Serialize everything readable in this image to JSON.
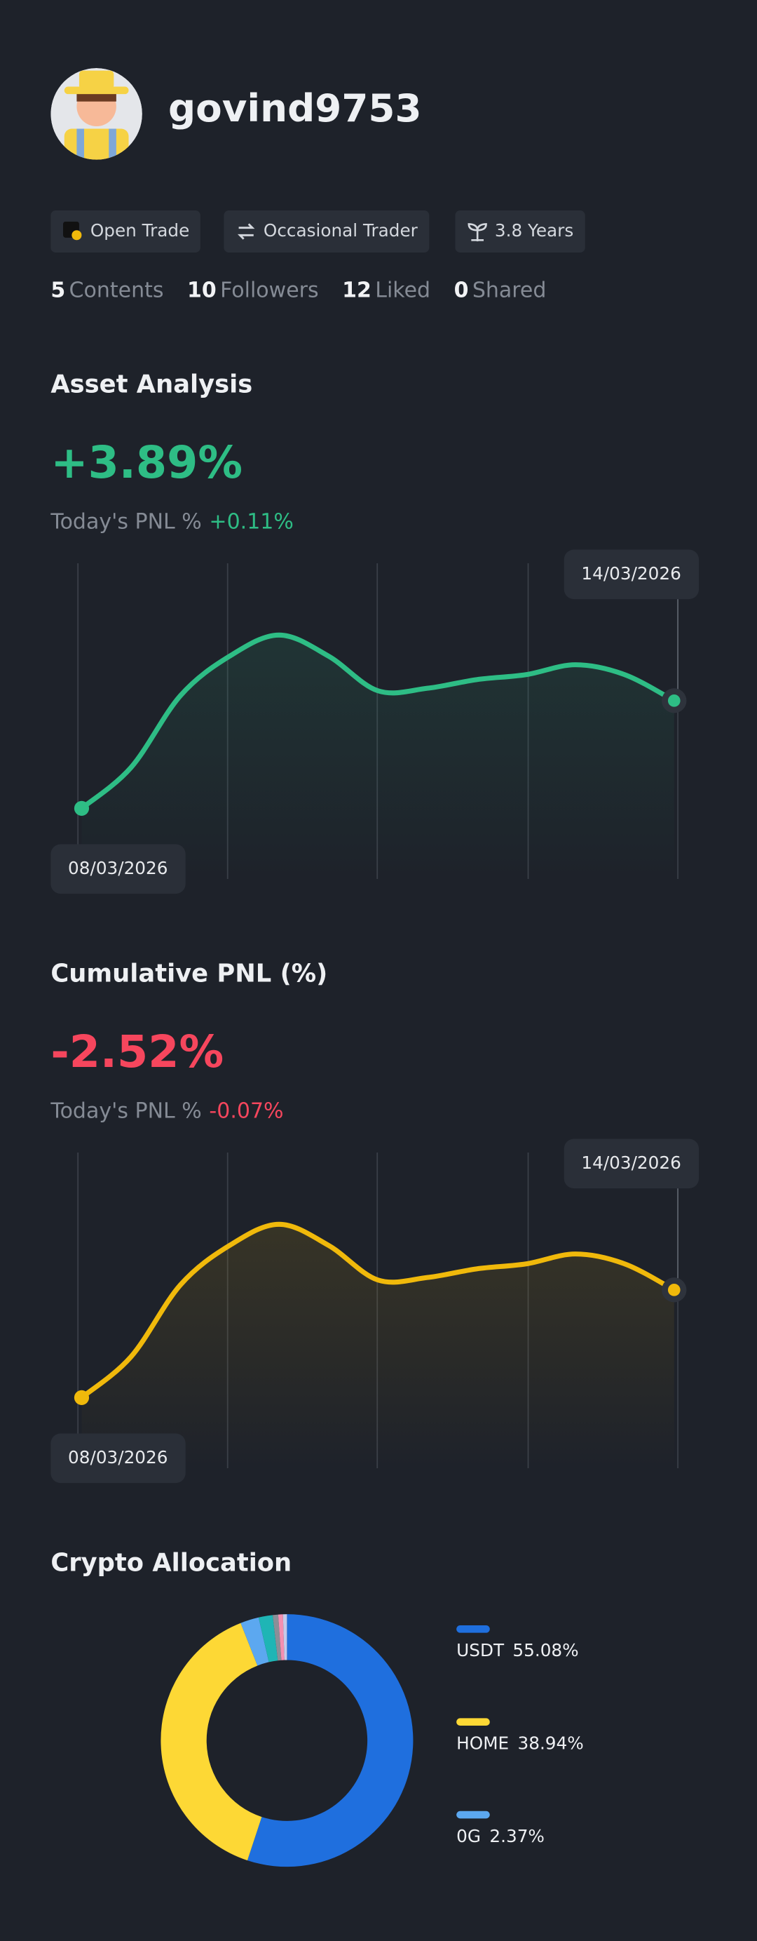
{
  "profile": {
    "username": "govind9753",
    "badges": [
      "Open Trade",
      "Occasional Trader",
      "3.8 Years"
    ],
    "stats": [
      {
        "value": 5,
        "label": "Contents"
      },
      {
        "value": 10,
        "label": "Followers"
      },
      {
        "value": 12,
        "label": "Liked"
      },
      {
        "value": 0,
        "label": "Shared"
      }
    ]
  },
  "chart_data": [
    {
      "type": "line",
      "title": "Asset Analysis",
      "headline": "+3.89%",
      "pnl_label": "Today's PNL %",
      "pnl_value": "+0.11%",
      "color": "#2ebd85",
      "start_label": "08/03/2026",
      "end_label": "14/03/2026",
      "values": [
        57,
        90,
        148,
        180,
        197,
        180,
        152,
        154,
        161,
        165,
        173,
        165,
        144
      ]
    },
    {
      "type": "line",
      "title": "Cumulative PNL (%)",
      "headline": "-2.52%",
      "pnl_label": "Today's PNL %",
      "pnl_value": "-0.07%",
      "color": "#f6465d",
      "line_color": "#f0b90b",
      "start_label": "08/03/2026",
      "end_label": "14/03/2026",
      "values": [
        57,
        90,
        148,
        180,
        197,
        180,
        152,
        154,
        161,
        165,
        173,
        165,
        144
      ]
    },
    {
      "type": "pie",
      "title": "Crypto Allocation",
      "donut": true,
      "categories": [
        "USDT",
        "HOME",
        "0G",
        null,
        null,
        null,
        null
      ],
      "values": [
        55.08,
        38.94,
        2.37,
        1.8,
        0.7,
        0.6,
        0.51
      ],
      "value_labels": [
        "55.08%",
        "38.94%",
        "2.37%",
        null,
        null,
        null,
        null
      ],
      "colors": [
        "#1f6fde",
        "#fdd835",
        "#5ca8f0",
        "#1fb5b5",
        "#8a8f98",
        "#f48fb1",
        "#c5cae9"
      ]
    }
  ]
}
